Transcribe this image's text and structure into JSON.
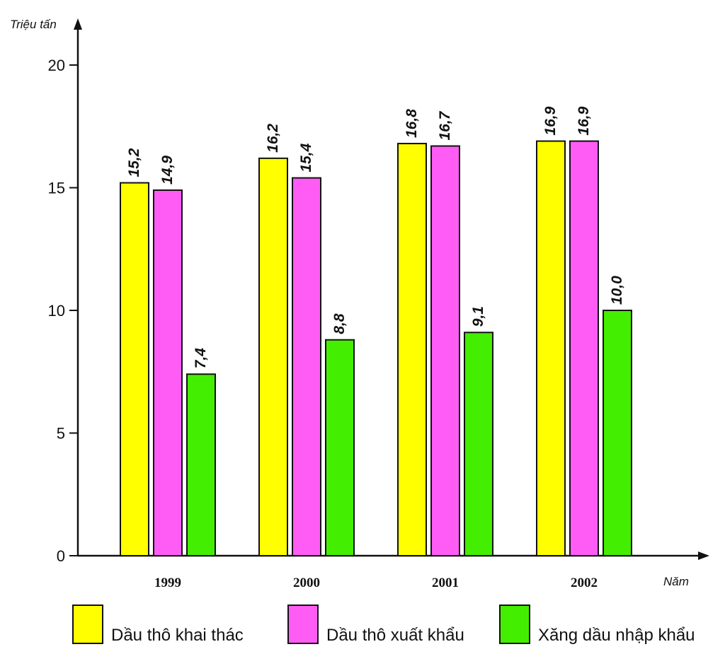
{
  "chart_data": {
    "type": "bar",
    "ylabel": "Triệu tấn",
    "xlabel": "Năm",
    "categories": [
      "1999",
      "2000",
      "2001",
      "2002"
    ],
    "ylim": [
      0,
      20
    ],
    "yticks": [
      "0",
      "5",
      "10",
      "15",
      "20"
    ],
    "series": [
      {
        "name": "Dầu thô khai thác",
        "values": [
          15.2,
          16.2,
          16.8,
          16.9
        ],
        "labels": [
          "15,2",
          "16,2",
          "16,8",
          "16,9"
        ],
        "color": "#ffff00"
      },
      {
        "name": "Dầu thô xuất khẩu",
        "values": [
          14.9,
          15.4,
          16.7,
          16.9
        ],
        "labels": [
          "14,9",
          "15,4",
          "16,7",
          "16,9"
        ],
        "color": "#ff5cf5"
      },
      {
        "name": "Xăng dầu nhập khẩu",
        "values": [
          7.4,
          8.8,
          9.1,
          10.0
        ],
        "labels": [
          "7,4",
          "8,8",
          "9,1",
          "10,0"
        ],
        "color": "#44ee00"
      }
    ],
    "grid": false,
    "legend_position": "bottom"
  }
}
